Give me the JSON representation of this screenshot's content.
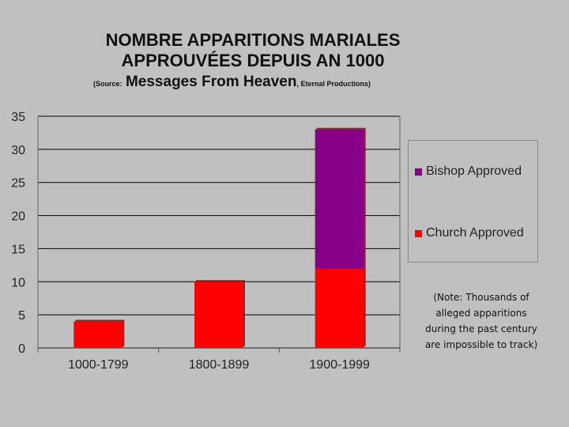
{
  "chart_data": {
    "type": "bar",
    "stacked": true,
    "title_line1": "NOMBRE APPARITIONS MARIALES",
    "title_line2": "APPROUVÉES DEPUIS AN 1000",
    "source_prefix": "(Source:",
    "source_title": "Messages From Heaven",
    "source_suffix": ", Eternal Productions)",
    "categories": [
      "1000-1799",
      "1800-1899",
      "1900-1999"
    ],
    "series": [
      {
        "name": "Church Approved",
        "values": [
          4,
          10,
          12
        ],
        "color": "#ff0000"
      },
      {
        "name": "Bishop Approved",
        "values": [
          0,
          0,
          21
        ],
        "color": "#880088"
      }
    ],
    "ylim": [
      0,
      35
    ],
    "yticks": [
      0,
      5,
      10,
      15,
      20,
      25,
      30,
      35
    ],
    "grid": true,
    "legend_position": "right",
    "xlabel": "",
    "ylabel": ""
  },
  "note": "(Note: Thousands of alleged apparitions during the past century are impossible to track)",
  "colors": {
    "background": "#c0c0c0",
    "grid": "#000000"
  }
}
